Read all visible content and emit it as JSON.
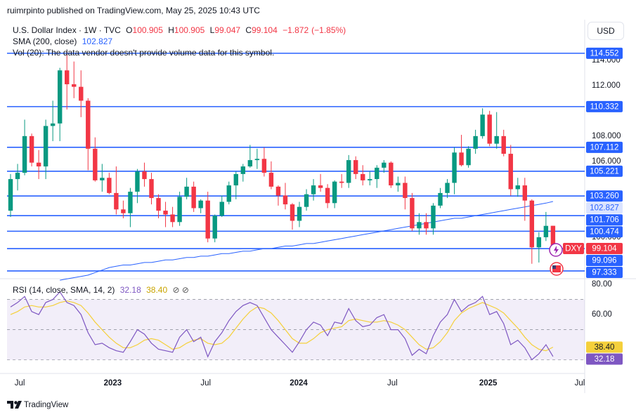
{
  "meta": {
    "publisher": "ruimrpinto published on TradingView.com, May 25, 2025 10:43 UTC",
    "currency": "USD",
    "brand": "TradingView"
  },
  "chart_data": [
    {
      "type": "candlestick",
      "title": "U.S. Dollar Index · 1W · TVC",
      "legend_labels": [
        "O",
        "H",
        "L",
        "C"
      ],
      "legend_values": [
        100.905,
        100.905,
        99.047,
        99.104
      ],
      "change": {
        "value": -1.872,
        "label": "−1.872"
      },
      "change_pct": {
        "value": -1.85,
        "label": "(−1.85%)"
      },
      "volume_note": "Vol (20): The data vendor doesn't provide volume data for this symbol.",
      "grid": false,
      "xlim": [
        -0.5,
        81.5
      ],
      "ylim": [
        96.83,
        117.1
      ],
      "yticks": [
        {
          "value": 114,
          "label": "114.000"
        },
        {
          "value": 112,
          "label": "112.000"
        },
        {
          "value": 108,
          "label": "108.000"
        },
        {
          "value": 106,
          "label": "106.000"
        },
        {
          "value": 100,
          "label": "100.000"
        }
      ],
      "levels": [
        114.552,
        110.332,
        107.112,
        105.221,
        {
          "value": 103.26,
          "label": "103.260"
        },
        101.706,
        100.474,
        99.096,
        97.333
      ],
      "level_color": "#2962ff",
      "series": [
        {
          "name": "DXY",
          "up_color": "#089981",
          "down_color": "#f23645",
          "ohlc": [
            [
              102.1,
              105.0,
              101.6,
              104.6
            ],
            [
              104.6,
              105.8,
              103.7,
              105.1
            ],
            [
              105.1,
              109.3,
              104.9,
              108.0
            ],
            [
              108.0,
              108.2,
              105.6,
              105.9
            ],
            [
              105.9,
              106.9,
              104.6,
              105.6
            ],
            [
              105.6,
              109.3,
              104.6,
              108.8
            ],
            [
              108.8,
              110.8,
              107.6,
              109.0
            ],
            [
              109.0,
              113.4,
              107.6,
              113.2
            ],
            [
              113.2,
              114.7,
              110.1,
              112.1
            ],
            [
              112.1,
              113.9,
              111.0,
              111.9
            ],
            [
              111.9,
              113.2,
              109.5,
              110.8
            ],
            [
              110.8,
              111.0,
              105.3,
              107.0
            ],
            [
              107.0,
              107.9,
              104.4,
              104.5
            ],
            [
              104.5,
              105.8,
              103.6,
              104.7
            ],
            [
              104.7,
              105.1,
              103.4,
              103.5
            ],
            [
              103.5,
              105.6,
              101.8,
              102.2
            ],
            [
              102.2,
              102.9,
              101.5,
              101.9
            ],
            [
              101.9,
              103.9,
              100.8,
              103.6
            ],
            [
              103.6,
              105.4,
              102.7,
              105.2
            ],
            [
              105.2,
              105.9,
              104.0,
              104.6
            ],
            [
              104.6,
              105.1,
              102.6,
              103.1
            ],
            [
              103.1,
              103.4,
              101.5,
              102.1
            ],
            [
              102.1,
              102.8,
              100.8,
              101.8
            ],
            [
              101.8,
              102.4,
              100.8,
              101.2
            ],
            [
              101.2,
              103.6,
              100.9,
              103.2
            ],
            [
              103.2,
              104.7,
              103.0,
              104.0
            ],
            [
              104.0,
              104.4,
              102.0,
              102.3
            ],
            [
              102.3,
              103.0,
              101.9,
              102.9
            ],
            [
              102.9,
              103.6,
              99.6,
              99.9
            ],
            [
              99.9,
              101.8,
              99.6,
              101.7
            ],
            [
              101.7,
              103.3,
              101.6,
              102.8
            ],
            [
              102.8,
              104.4,
              102.6,
              104.1
            ],
            [
              104.1,
              105.2,
              103.0,
              105.0
            ],
            [
              105.0,
              105.8,
              104.4,
              105.6
            ],
            [
              105.6,
              107.3,
              105.5,
              106.1
            ],
            [
              106.1,
              107.0,
              105.4,
              106.2
            ],
            [
              106.2,
              107.1,
              104.8,
              105.1
            ],
            [
              105.1,
              106.0,
              103.8,
              104.0
            ],
            [
              104.0,
              104.1,
              102.5,
              103.3
            ],
            [
              103.3,
              104.3,
              102.2,
              102.6
            ],
            [
              102.6,
              102.7,
              100.6,
              101.3
            ],
            [
              101.3,
              102.8,
              100.8,
              102.4
            ],
            [
              102.4,
              103.8,
              102.1,
              103.4
            ],
            [
              103.4,
              104.6,
              102.9,
              104.1
            ],
            [
              104.1,
              105.0,
              103.6,
              103.9
            ],
            [
              103.9,
              104.2,
              102.3,
              102.7
            ],
            [
              102.7,
              104.5,
              102.3,
              104.4
            ],
            [
              104.4,
              105.0,
              103.9,
              104.3
            ],
            [
              104.3,
              106.5,
              103.9,
              106.1
            ],
            [
              106.1,
              106.4,
              104.6,
              105.0
            ],
            [
              105.0,
              105.7,
              104.1,
              104.5
            ],
            [
              104.5,
              105.2,
              104.1,
              104.6
            ],
            [
              104.6,
              105.7,
              103.9,
              105.5
            ],
            [
              105.5,
              106.1,
              105.1,
              105.9
            ],
            [
              105.9,
              106.0,
              103.9,
              104.1
            ],
            [
              104.1,
              104.8,
              103.6,
              104.3
            ],
            [
              104.3,
              104.8,
              102.2,
              103.1
            ],
            [
              103.1,
              103.5,
              100.5,
              100.7
            ],
            [
              100.7,
              101.9,
              100.2,
              101.2
            ],
            [
              101.2,
              101.9,
              100.2,
              100.7
            ],
            [
              100.7,
              102.7,
              100.2,
              102.5
            ],
            [
              102.5,
              103.9,
              102.3,
              103.5
            ],
            [
              103.5,
              104.6,
              103.1,
              104.3
            ],
            [
              104.3,
              107.1,
              103.4,
              106.7
            ],
            [
              106.7,
              108.1,
              105.6,
              105.7
            ],
            [
              105.7,
              107.2,
              105.5,
              107.0
            ],
            [
              107.0,
              108.5,
              106.6,
              108.0
            ],
            [
              108.0,
              110.2,
              107.8,
              109.7
            ],
            [
              109.7,
              110.0,
              107.2,
              107.4
            ],
            [
              107.4,
              109.9,
              107.0,
              108.0
            ],
            [
              108.0,
              108.5,
              106.4,
              106.6
            ],
            [
              106.6,
              107.3,
              103.3,
              103.8
            ],
            [
              103.8,
              104.7,
              103.2,
              104.1
            ],
            [
              104.1,
              104.7,
              101.3,
              102.9
            ],
            [
              102.9,
              103.0,
              97.9,
              99.2
            ],
            [
              99.2,
              100.4,
              98.0,
              100.0
            ],
            [
              100.0,
              102.0,
              99.7,
              100.9
            ],
            [
              100.905,
              100.905,
              99.047,
              99.104
            ]
          ]
        },
        {
          "name": "SMA (200, close)",
          "color": "#2962ff",
          "values": [
            null,
            null,
            null,
            null,
            null,
            null,
            null,
            96.6,
            96.7,
            96.8,
            96.9,
            97.0,
            97.2,
            97.4,
            97.6,
            97.7,
            97.8,
            97.8,
            97.9,
            98.0,
            98.0,
            98.1,
            98.2,
            98.2,
            98.3,
            98.4,
            98.4,
            98.5,
            98.5,
            98.6,
            98.7,
            98.7,
            98.8,
            98.9,
            98.9,
            99.0,
            99.1,
            99.1,
            99.2,
            99.3,
            99.3,
            99.4,
            99.5,
            99.5,
            99.6,
            99.7,
            99.8,
            99.9,
            100.0,
            100.1,
            100.2,
            100.3,
            100.4,
            100.5,
            100.6,
            100.7,
            100.8,
            100.9,
            101.0,
            101.1,
            101.2,
            101.3,
            101.4,
            101.5,
            101.5,
            101.6,
            101.7,
            101.8,
            101.9,
            102.0,
            102.1,
            102.2,
            102.3,
            102.4,
            102.5,
            102.6,
            102.7,
            102.827
          ]
        }
      ]
    },
    {
      "type": "line",
      "title": "RSI (14, close, SMA, 14, 2)",
      "xlim": [
        -0.5,
        81.5
      ],
      "ylim": [
        22.8,
        83.3
      ],
      "xticks": [
        {
          "value": 1.3,
          "label": "Jul"
        },
        {
          "value": 14.5,
          "label": "2023"
        },
        {
          "value": 27.7,
          "label": "Jul"
        },
        {
          "value": 40.9,
          "label": "2024"
        },
        {
          "value": 54.2,
          "label": "Jul"
        },
        {
          "value": 67.8,
          "label": "2025"
        },
        {
          "value": 80.8,
          "label": "Jul"
        }
      ],
      "yticks": [
        {
          "value": 80,
          "label": "80.00"
        },
        {
          "value": 60,
          "label": "60.00"
        }
      ],
      "bands": [
        70,
        50,
        30
      ],
      "band_fill": "rgba(126,87,194,0.1)",
      "series": [
        {
          "color": "#7e57c2",
          "values": [
            65,
            68,
            72,
            62,
            60,
            68,
            70,
            75,
            68,
            66,
            60,
            48,
            40,
            41,
            38,
            36,
            35,
            42,
            50,
            47,
            41,
            37,
            36,
            35,
            45,
            50,
            42,
            45,
            32,
            42,
            48,
            56,
            62,
            66,
            68,
            66,
            58,
            50,
            45,
            40,
            35,
            42,
            50,
            55,
            53,
            46,
            55,
            54,
            64,
            56,
            52,
            53,
            58,
            60,
            50,
            50,
            44,
            33,
            37,
            34,
            46,
            55,
            60,
            70,
            62,
            66,
            68,
            72,
            60,
            62,
            54,
            40,
            43,
            38,
            30,
            34,
            40,
            32.18
          ]
        },
        {
          "color": "#f5d03b",
          "values": [
            60,
            62,
            65,
            66,
            65,
            65,
            66,
            68,
            69,
            68,
            66,
            61,
            55,
            50,
            45,
            41,
            38,
            38,
            40,
            43,
            44,
            43,
            40,
            37,
            38,
            41,
            43,
            44,
            41,
            40,
            41,
            45,
            51,
            57,
            62,
            65,
            64,
            61,
            56,
            50,
            44,
            41,
            41,
            44,
            48,
            50,
            51,
            52,
            56,
            57,
            56,
            55,
            55,
            56,
            55,
            53,
            50,
            45,
            40,
            37,
            38,
            42,
            48,
            56,
            61,
            64,
            66,
            68,
            66,
            64,
            61,
            56,
            51,
            45,
            40,
            37,
            36,
            38.4
          ],
          "value_labels": [
            null,
            null,
            null,
            null,
            null,
            null,
            null,
            null,
            null,
            null,
            null,
            null,
            null,
            null,
            null,
            null,
            null,
            null,
            null,
            null,
            null,
            null,
            null,
            null,
            null,
            null,
            null,
            null,
            null,
            null,
            null,
            null,
            null,
            null,
            null,
            null,
            null,
            null,
            null,
            null,
            null,
            null,
            null,
            null,
            null,
            null,
            null,
            null,
            null,
            null,
            null,
            null,
            null,
            null,
            null,
            null,
            null,
            null,
            null,
            null,
            null,
            null,
            null,
            null,
            null,
            null,
            null,
            null,
            null,
            null,
            null,
            null,
            null,
            null,
            null,
            null,
            null,
            "38.40"
          ]
        }
      ]
    }
  ]
}
